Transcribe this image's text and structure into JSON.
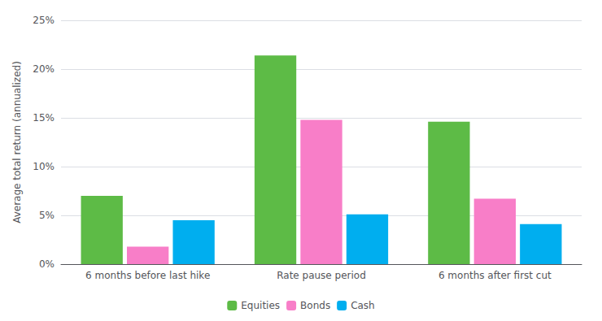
{
  "chart_data": {
    "type": "bar",
    "ylabel": "Average total return (annualized)",
    "categories": [
      "6 months before last hike",
      "Rate pause period",
      "6 months after first cut"
    ],
    "series": [
      {
        "name": "Equities",
        "color": "#5DBB46",
        "values": [
          7.0,
          21.4,
          14.6
        ]
      },
      {
        "name": "Bonds",
        "color": "#F87EC8",
        "values": [
          1.8,
          14.8,
          6.7
        ]
      },
      {
        "name": "Cash",
        "color": "#00AEEF",
        "values": [
          4.5,
          5.1,
          4.1
        ]
      }
    ],
    "ylim": [
      0,
      25
    ],
    "yticks": [
      {
        "value": 0,
        "label": "0%"
      },
      {
        "value": 5,
        "label": "5%"
      },
      {
        "value": 10,
        "label": "10%"
      },
      {
        "value": 15,
        "label": "15%"
      },
      {
        "value": 20,
        "label": "20%"
      },
      {
        "value": 25,
        "label": "25%"
      }
    ],
    "grid": true,
    "legend": "bottom"
  }
}
